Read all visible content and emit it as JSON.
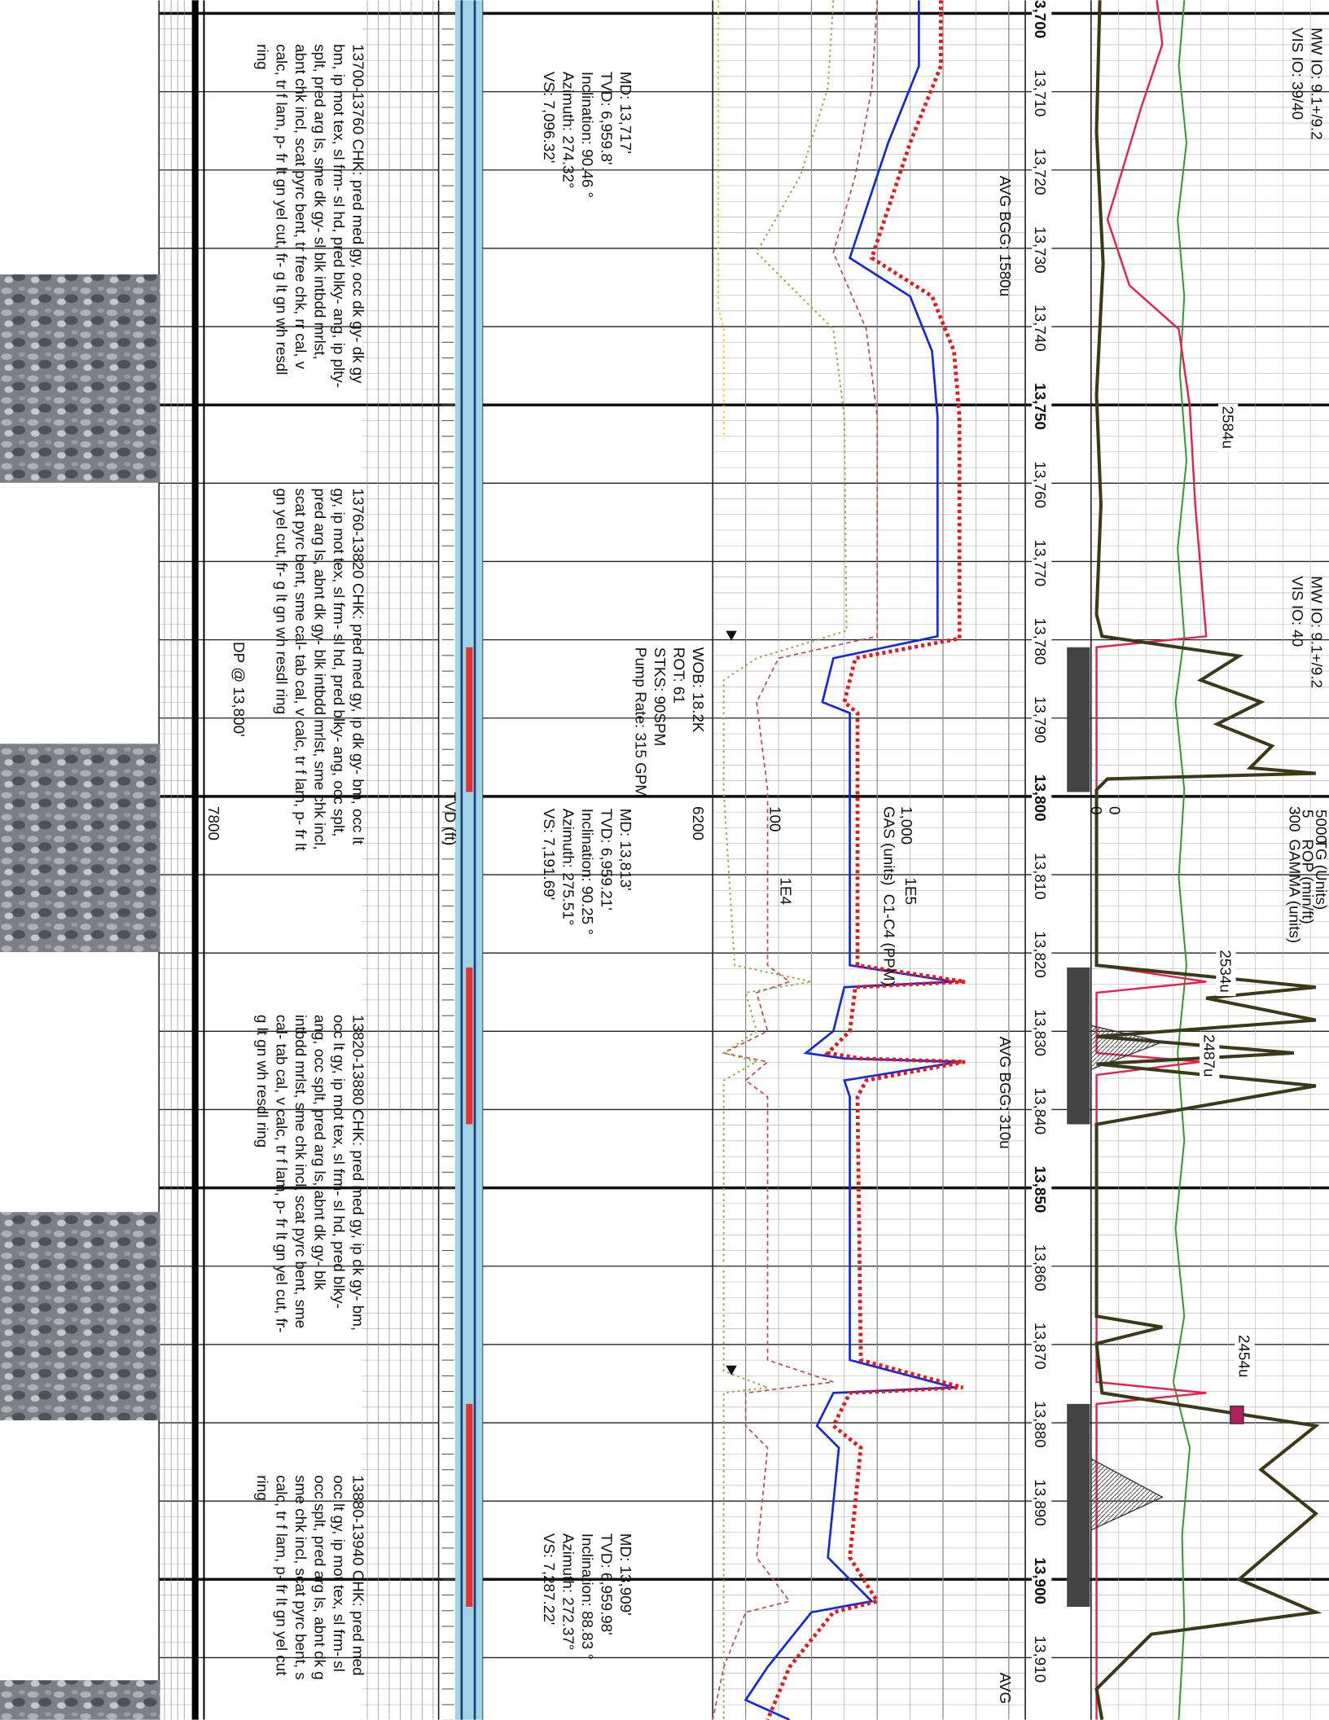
{
  "depth_labels": [
    "13,700",
    "13,710",
    "13,720",
    "13,730",
    "13,740",
    "13,750",
    "13,760",
    "13,770",
    "13,780",
    "13,790",
    "13,800",
    "13,810",
    "13,820",
    "13,830",
    "13,840",
    "13,850",
    "13,860",
    "13,870",
    "13,880",
    "13,890",
    "13,900",
    "13,910"
  ],
  "mud_notes": [
    [
      "MW IO: 9.1+/9.2",
      "VIS IO: 39/40"
    ],
    [
      "MW IO: 9.1+/9.2",
      "VIS IO: 40"
    ]
  ],
  "surveys": [
    [
      "MD: 13,717'",
      "TVD: 6,959.8'",
      "Inclination: 90.46 °",
      "Azimuth: 274.32°",
      "VS: 7,096.32'"
    ],
    [
      "MD: 13,813'",
      "TVD: 6,959.21'",
      "Inclination: 90.25 °",
      "Azimuth: 275.51°",
      "VS: 7,191.69'"
    ],
    [
      "MD: 13,909'",
      "TVD: 6,959.98'",
      "Inclination: 88.83 °",
      "Azimuth: 272.37°",
      "VS: 7,287.22'"
    ]
  ],
  "drilling_params": [
    "WOB: 18.2K",
    "ROT: 61",
    "STKS: 90SPM",
    "Pump Rate: 315 GPM"
  ],
  "descriptions": [
    [
      "13700-13760 CHK: pred med gy, occ dk gy- dk gy",
      "bm, ip mot tex, sl frm- sl hd, pred blky- ang, ip plty-",
      "splt, pred arg ls, sme dk gy- sl blk intbdd mrlst,",
      "abnt chk incl, scat pyrc bent, tr free chk, rr cal, v",
      "calc, tr f lam, p- fr lt gn yel cut, fr- g lt gn wh resdl",
      "ring"
    ],
    [
      "13760-13820 CHK: pred med gy, ip dk gy- bm, occ lt",
      "gy, ip mot tex, sl frm- sl hd, pred blky- ang, occ splt,",
      "pred arg ls, abnt dk gy- blk intbdd mrlst, sme chk incl,",
      "scat pyrc bent, sme cal- tab cal, v calc, tr f lam, p- fr lt",
      "gn yel cut, fr- g lt gn wh resdl ring"
    ],
    [
      "13820-13880 CHK: pred med gy, ip dk gy- bm,",
      "occ lt gy, ip mot tex, sl frm- sl hd, pred blky-",
      "ang, occ splt, pred arg ls, abnt dk gy- blk",
      "intbdd mrlst, sme chk incl, scat pyrc bent, sme",
      "cal- tab cal, v calc, tr f lam, p- fr lt gn yel cut, fr-",
      "g lt gn wh resdl ring"
    ],
    [
      "13880-13940 CHK: pred med",
      "occ lt gy, ip mot tex, sl frm- sl",
      "occ splt, pred arg ls, abnt dk g",
      "sme chk incl, scat pyrc bent, s",
      "calc, tr f lam, p- fr lt gn yel cut",
      "ring"
    ]
  ],
  "dp_note": "DP @ 13,800'",
  "bgg_notes": [
    "AVG BGG: 1580u",
    "AVG BGG: 310u",
    "AVG"
  ],
  "gas_peaks": [
    "2584u",
    "2534u",
    "2487u",
    "2454u"
  ],
  "scales": {
    "tg_max": "5000",
    "tg_min": "0",
    "tg_title": "TG (Units)",
    "rop_max": "5",
    "rop_min": "0",
    "rop_title": "ROP (min/ft)",
    "gamma_max": "300",
    "gamma_title": "GAMMA (units)",
    "gas_max": "1,000",
    "gas_min": "100",
    "gas_title": "GAS (units)",
    "c1c4_max": "1E5",
    "c1c4_min": "1E4",
    "c1c4_title": "C1-C4 (PPM)",
    "tvd_max": "6200",
    "tvd_min": "7800",
    "tvd_title": "TVD (ft)"
  }
}
